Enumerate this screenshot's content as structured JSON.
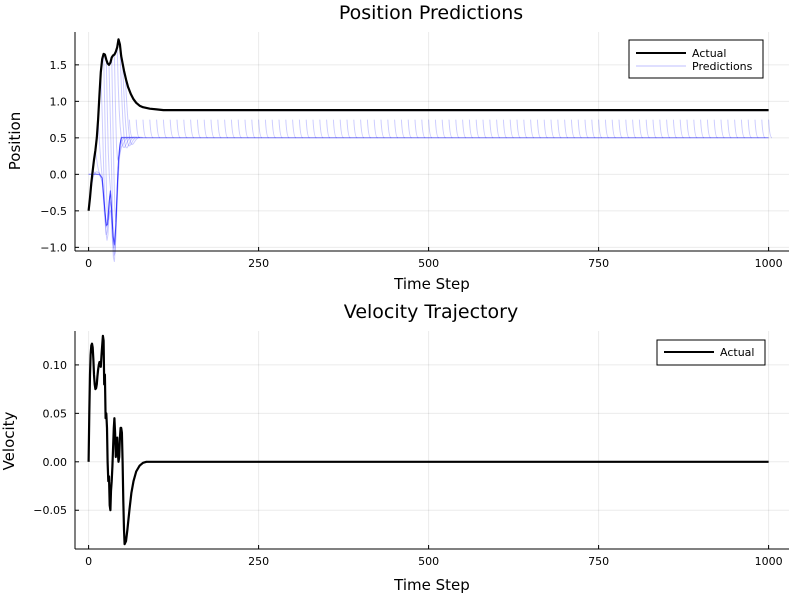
{
  "chart_data": [
    {
      "type": "line",
      "title": "Position Predictions",
      "xlabel": "Time Step",
      "ylabel": "Position",
      "xlim": [
        -20,
        1030
      ],
      "ylim": [
        -1.05,
        1.95
      ],
      "xticks": [
        0,
        250,
        500,
        750,
        1000
      ],
      "xtick_labels": [
        "0",
        "250",
        "500",
        "750",
        "1000"
      ],
      "yticks": [
        -1.0,
        -0.5,
        0.0,
        0.5,
        1.0,
        1.5
      ],
      "ytick_labels": [
        "−1.0",
        "−0.5",
        "0.0",
        "0.5",
        "1.0",
        "1.5"
      ],
      "grid": true,
      "legend": "top-right",
      "series": [
        {
          "name": "Actual",
          "color": "#000000",
          "x": [
            0,
            2,
            4,
            6,
            8,
            10,
            12,
            14,
            16,
            18,
            20,
            22,
            24,
            26,
            28,
            30,
            32,
            34,
            36,
            38,
            40,
            42,
            44,
            46,
            48,
            50,
            52,
            55,
            58,
            62,
            66,
            70,
            75,
            80,
            90,
            100,
            110,
            120,
            150,
            200,
            300,
            500,
            700,
            1000
          ],
          "y": [
            -0.5,
            -0.32,
            -0.12,
            0.05,
            0.2,
            0.33,
            0.5,
            0.75,
            1.1,
            1.4,
            1.58,
            1.65,
            1.64,
            1.57,
            1.52,
            1.5,
            1.53,
            1.6,
            1.63,
            1.64,
            1.68,
            1.74,
            1.85,
            1.78,
            1.62,
            1.52,
            1.42,
            1.3,
            1.2,
            1.1,
            1.03,
            0.98,
            0.94,
            0.92,
            0.9,
            0.89,
            0.88,
            0.88,
            0.88,
            0.88,
            0.88,
            0.88,
            0.88,
            0.88
          ]
        },
        {
          "name": "Predictions",
          "color": "#0000ff",
          "opacity": 0.2,
          "x": [
            0,
            4,
            8,
            12,
            16,
            20,
            24,
            26,
            28,
            30,
            32,
            34,
            36,
            38,
            40,
            42,
            44,
            46,
            48,
            50,
            52,
            55,
            60,
            80,
            100,
            200,
            300,
            400,
            500,
            600,
            700,
            800,
            900,
            1000
          ],
          "y": [
            0.0,
            0.0,
            0.0,
            0.0,
            0.0,
            -0.05,
            -0.5,
            -0.7,
            -0.68,
            -0.4,
            -0.22,
            -0.5,
            -0.85,
            -0.97,
            -0.7,
            -0.2,
            0.2,
            0.4,
            0.5,
            0.5,
            0.5,
            0.5,
            0.5,
            0.5,
            0.5,
            0.5,
            0.5,
            0.5,
            0.5,
            0.5,
            0.5,
            0.5,
            0.5,
            0.5
          ]
        }
      ]
    },
    {
      "type": "line",
      "title": "Velocity Trajectory",
      "xlabel": "Time Step",
      "ylabel": "Velocity",
      "xlim": [
        -20,
        1030
      ],
      "ylim": [
        -0.09,
        0.135
      ],
      "xticks": [
        0,
        250,
        500,
        750,
        1000
      ],
      "xtick_labels": [
        "0",
        "250",
        "500",
        "750",
        "1000"
      ],
      "yticks": [
        -0.05,
        0.0,
        0.05,
        0.1
      ],
      "ytick_labels": [
        "−0.05",
        "0.00",
        "0.05",
        "0.10"
      ],
      "grid": true,
      "legend": "top-right",
      "series": [
        {
          "name": "Actual",
          "color": "#000000",
          "x": [
            0,
            1,
            2,
            3,
            4,
            5,
            6,
            7,
            8,
            9,
            10,
            11,
            12,
            13,
            14,
            15,
            16,
            17,
            18,
            19,
            20,
            21,
            22,
            23,
            24,
            25,
            26,
            27,
            28,
            29,
            30,
            31,
            32,
            33,
            34,
            35,
            36,
            37,
            38,
            39,
            40,
            41,
            42,
            43,
            44,
            45,
            46,
            47,
            48,
            49,
            50,
            51,
            52,
            53,
            55,
            57,
            60,
            63,
            66,
            70,
            75,
            80,
            85,
            90,
            95,
            100,
            110,
            120,
            150,
            200,
            300,
            500,
            700,
            1000
          ],
          "y": [
            0.0,
            0.05,
            0.09,
            0.11,
            0.12,
            0.122,
            0.118,
            0.105,
            0.09,
            0.08,
            0.075,
            0.076,
            0.08,
            0.088,
            0.095,
            0.1,
            0.103,
            0.1,
            0.098,
            0.11,
            0.12,
            0.13,
            0.125,
            0.08,
            0.09,
            0.045,
            0.05,
            0.035,
            0.0,
            -0.02,
            -0.015,
            -0.045,
            -0.05,
            -0.03,
            -0.02,
            -0.005,
            0.015,
            0.035,
            0.045,
            0.03,
            0.005,
            0.02,
            0.025,
            0.01,
            0.0,
            0.005,
            0.025,
            0.035,
            0.035,
            0.03,
            0.0,
            -0.04,
            -0.07,
            -0.085,
            -0.082,
            -0.07,
            -0.05,
            -0.032,
            -0.02,
            -0.01,
            -0.004,
            -0.001,
            0.0,
            0.0,
            0.0,
            0.0,
            0.0,
            0.0,
            0.0,
            0.0,
            0.0,
            0.0,
            0.0,
            0.0
          ]
        }
      ]
    }
  ]
}
